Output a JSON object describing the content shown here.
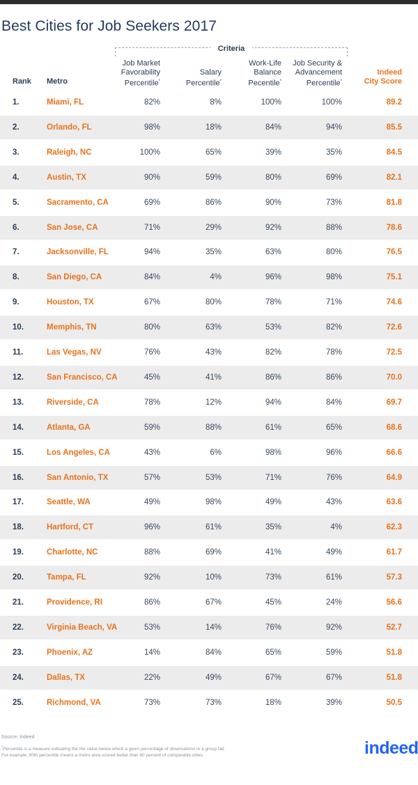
{
  "title": "Best Cities for Job Seekers 2017",
  "colors": {
    "accent": "#e8731b",
    "header_text": "#2b3e57",
    "row_shade": "#ececed",
    "logo": "#2164f3"
  },
  "chart_data": {
    "type": "table",
    "group_label": "Criteria",
    "columns": {
      "rank": "Rank",
      "metro": "Metro",
      "job_market": [
        "Job Market",
        "Favorability",
        "Percentile"
      ],
      "salary": [
        "Salary",
        "Percentile"
      ],
      "work_life": [
        "Work-Life",
        "Balance",
        "Pecentile"
      ],
      "job_security": [
        "Job Security &",
        "Advancement",
        "Percentile"
      ],
      "score": [
        "Indeed",
        "City Score"
      ]
    },
    "rows": [
      {
        "rank": "1.",
        "metro": "Miami, FL",
        "job_market": "82%",
        "salary": "8%",
        "work_life": "100%",
        "job_security": "100%",
        "score": "89.2"
      },
      {
        "rank": "2.",
        "metro": "Orlando, FL",
        "job_market": "98%",
        "salary": "18%",
        "work_life": "84%",
        "job_security": "94%",
        "score": "85.5"
      },
      {
        "rank": "3.",
        "metro": "Raleigh, NC",
        "job_market": "100%",
        "salary": "65%",
        "work_life": "39%",
        "job_security": "35%",
        "score": "84.5"
      },
      {
        "rank": "4.",
        "metro": "Austin, TX",
        "job_market": "90%",
        "salary": "59%",
        "work_life": "80%",
        "job_security": "69%",
        "score": "82.1"
      },
      {
        "rank": "5.",
        "metro": "Sacramento, CA",
        "job_market": "69%",
        "salary": "86%",
        "work_life": "90%",
        "job_security": "73%",
        "score": "81.8"
      },
      {
        "rank": "6.",
        "metro": "San Jose, CA",
        "job_market": "71%",
        "salary": "29%",
        "work_life": "92%",
        "job_security": "88%",
        "score": "78.6"
      },
      {
        "rank": "7.",
        "metro": "Jacksonville, FL",
        "job_market": "94%",
        "salary": "35%",
        "work_life": "63%",
        "job_security": "80%",
        "score": "76.5"
      },
      {
        "rank": "8.",
        "metro": "San Diego, CA",
        "job_market": "84%",
        "salary": "4%",
        "work_life": "96%",
        "job_security": "98%",
        "score": "75.1"
      },
      {
        "rank": "9.",
        "metro": "Houston, TX",
        "job_market": "67%",
        "salary": "80%",
        "work_life": "78%",
        "job_security": "71%",
        "score": "74.6"
      },
      {
        "rank": "10.",
        "metro": "Memphis, TN",
        "job_market": "80%",
        "salary": "63%",
        "work_life": "53%",
        "job_security": "82%",
        "score": "72.6"
      },
      {
        "rank": "11.",
        "metro": "Las Vegas, NV",
        "job_market": "76%",
        "salary": "43%",
        "work_life": "82%",
        "job_security": "78%",
        "score": "72.5"
      },
      {
        "rank": "12.",
        "metro": "San Francisco, CA",
        "job_market": "45%",
        "salary": "41%",
        "work_life": "86%",
        "job_security": "86%",
        "score": "70.0"
      },
      {
        "rank": "13.",
        "metro": "Riverside, CA",
        "job_market": "78%",
        "salary": "12%",
        "work_life": "94%",
        "job_security": "84%",
        "score": "69.7"
      },
      {
        "rank": "14.",
        "metro": "Atlanta, GA",
        "job_market": "59%",
        "salary": "88%",
        "work_life": "61%",
        "job_security": "65%",
        "score": "68.6"
      },
      {
        "rank": "15.",
        "metro": "Los Angeles, CA",
        "job_market": "43%",
        "salary": "6%",
        "work_life": "98%",
        "job_security": "96%",
        "score": "66.6"
      },
      {
        "rank": "16.",
        "metro": "San Antonio, TX",
        "job_market": "57%",
        "salary": "53%",
        "work_life": "71%",
        "job_security": "76%",
        "score": "64.9"
      },
      {
        "rank": "17.",
        "metro": "Seattle, WA",
        "job_market": "49%",
        "salary": "98%",
        "work_life": "49%",
        "job_security": "43%",
        "score": "63.6"
      },
      {
        "rank": "18.",
        "metro": "Hartford, CT",
        "job_market": "96%",
        "salary": "61%",
        "work_life": "35%",
        "job_security": "4%",
        "score": "62.3"
      },
      {
        "rank": "19.",
        "metro": "Charlotte, NC",
        "job_market": "88%",
        "salary": "69%",
        "work_life": "41%",
        "job_security": "49%",
        "score": "61.7"
      },
      {
        "rank": "20.",
        "metro": "Tampa, FL",
        "job_market": "92%",
        "salary": "10%",
        "work_life": "73%",
        "job_security": "61%",
        "score": "57.3"
      },
      {
        "rank": "21.",
        "metro": "Providence, RI",
        "job_market": "86%",
        "salary": "67%",
        "work_life": "45%",
        "job_security": "24%",
        "score": "56.6"
      },
      {
        "rank": "22.",
        "metro": "Virginia Beach, VA",
        "job_market": "53%",
        "salary": "14%",
        "work_life": "76%",
        "job_security": "92%",
        "score": "52.7"
      },
      {
        "rank": "23.",
        "metro": "Phoenix, AZ",
        "job_market": "14%",
        "salary": "84%",
        "work_life": "65%",
        "job_security": "59%",
        "score": "51.8"
      },
      {
        "rank": "24.",
        "metro": "Dallas, TX",
        "job_market": "22%",
        "salary": "49%",
        "work_life": "67%",
        "job_security": "67%",
        "score": "51.8"
      },
      {
        "rank": "25.",
        "metro": "Richmond, VA",
        "job_market": "73%",
        "salary": "73%",
        "work_life": "18%",
        "job_security": "39%",
        "score": "50.5"
      }
    ]
  },
  "footer": {
    "source": "Source: Indeed",
    "asterisk": "*",
    "note_line1": "Percentile is a measure indicating the the value below which a given percentage of observations in a group fall.",
    "note_line2": "For example, 80th percentile means a metro area scored better than 80 percent of comparable cities.",
    "logo": "indeed"
  }
}
